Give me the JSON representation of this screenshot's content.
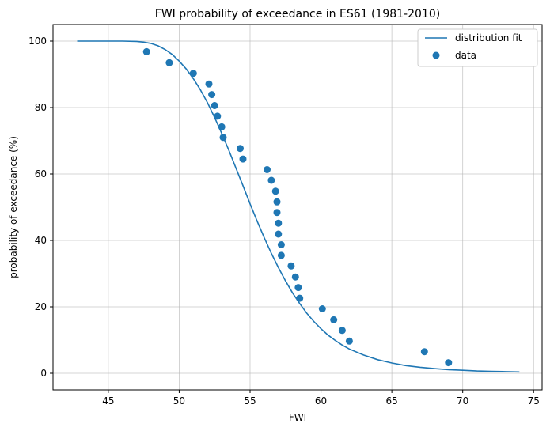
{
  "chart_data": {
    "type": "scatter",
    "title": "FWI probability of exceedance in ES61 (1981-2010)",
    "xlabel": "FWI",
    "ylabel": "probability of exceedance (%)",
    "xlim": [
      41.1,
      75.6
    ],
    "ylim": [
      -5,
      105
    ],
    "xticks": [
      45,
      50,
      55,
      60,
      65,
      70,
      75
    ],
    "yticks": [
      0,
      20,
      40,
      60,
      80,
      100
    ],
    "grid": true,
    "legend_position": "top-right",
    "colors": {
      "series": "#1f77b4",
      "grid": "#b0b0b0"
    },
    "series": [
      {
        "name": "distribution fit",
        "kind": "line",
        "x": [
          42.8,
          44.0,
          45.0,
          46.0,
          47.0,
          47.5,
          48.0,
          48.5,
          49.0,
          49.5,
          50.0,
          50.5,
          51.0,
          51.5,
          52.0,
          52.5,
          53.0,
          53.5,
          54.0,
          54.5,
          55.0,
          55.5,
          56.0,
          56.5,
          57.0,
          57.5,
          58.0,
          58.5,
          59.0,
          59.5,
          60.0,
          60.5,
          61.0,
          61.5,
          62.0,
          63.0,
          64.0,
          65.0,
          66.0,
          67.0,
          68.0,
          69.0,
          70.0,
          71.0,
          72.0,
          73.0,
          74.0
        ],
        "y": [
          100.0,
          100.0,
          100.0,
          100.0,
          99.9,
          99.7,
          99.3,
          98.6,
          97.5,
          96.0,
          94.0,
          91.6,
          88.7,
          85.3,
          81.4,
          77.0,
          72.2,
          67.2,
          61.8,
          56.5,
          51.0,
          45.8,
          40.8,
          36.1,
          31.8,
          27.8,
          24.2,
          21.0,
          18.1,
          15.6,
          13.4,
          11.5,
          9.9,
          8.5,
          7.3,
          5.5,
          4.1,
          3.1,
          2.3,
          1.8,
          1.4,
          1.1,
          0.9,
          0.7,
          0.6,
          0.5,
          0.4
        ]
      },
      {
        "name": "data",
        "kind": "scatter",
        "x": [
          47.7,
          49.3,
          51.0,
          52.1,
          52.3,
          52.5,
          52.7,
          53.0,
          53.1,
          54.3,
          54.5,
          56.2,
          56.5,
          56.8,
          56.9,
          56.9,
          57.0,
          57.0,
          57.2,
          57.2,
          57.9,
          58.2,
          58.4,
          58.5,
          60.1,
          60.9,
          61.5,
          62.0,
          67.3,
          69.0
        ],
        "y": [
          96.8,
          93.5,
          90.3,
          87.1,
          83.9,
          80.6,
          77.4,
          74.2,
          71.0,
          67.7,
          64.5,
          61.3,
          58.1,
          54.8,
          51.6,
          48.4,
          45.2,
          41.9,
          38.7,
          35.5,
          32.3,
          29.0,
          25.8,
          22.6,
          19.4,
          16.1,
          12.9,
          9.7,
          6.5,
          3.2
        ]
      }
    ]
  }
}
